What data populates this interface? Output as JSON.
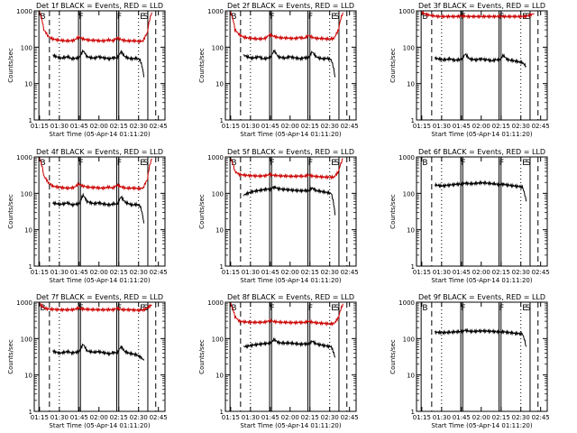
{
  "chart_data": [
    {
      "type": "line",
      "title": "Det 1f BLACK = Events, RED = LLD",
      "xlabel": "Start Time (05-Apr-14 01:11:20)",
      "ylabel": "Counts/sec",
      "xticks": [
        "01:15",
        "01:30",
        "01:45",
        "02:00",
        "02:15",
        "02:30",
        "02:45"
      ],
      "yticks": [
        "1",
        "10",
        "100",
        "1000"
      ],
      "yscale": "log",
      "ylim": [
        1,
        1000
      ],
      "series": [
        {
          "name": "BLACK = Events",
          "color": "#000000",
          "x_start": "01:25",
          "x_end": "02:34",
          "values": [
            60,
            55,
            50,
            52,
            55,
            48,
            50,
            52,
            80,
            55,
            52,
            50,
            55,
            52,
            50,
            48,
            52,
            50,
            75,
            55,
            50,
            48,
            50,
            45,
            15
          ]
        },
        {
          "name": "RED = LLD",
          "color": "#cc0000",
          "x_start": "01:15",
          "x_end": "02:40",
          "values": [
            900,
            300,
            200,
            170,
            160,
            155,
            150,
            150,
            155,
            190,
            170,
            160,
            155,
            155,
            150,
            150,
            160,
            150,
            180,
            160,
            150,
            150,
            150,
            145,
            150,
            250,
            900
          ]
        }
      ],
      "markers": [
        "B",
        "F",
        "F",
        "E",
        "S"
      ]
    },
    {
      "type": "line",
      "title": "Det 2f BLACK = Events, RED = LLD",
      "xlabel": "Start Time (05-Apr-14 01:11:20)",
      "ylabel": "Counts/sec",
      "xticks": [
        "01:15",
        "01:30",
        "01:45",
        "02:00",
        "02:15",
        "02:30",
        "02:45"
      ],
      "yticks": [
        "1",
        "10",
        "100",
        "1000"
      ],
      "yscale": "log",
      "ylim": [
        1,
        1000
      ],
      "series": [
        {
          "name": "BLACK = Events",
          "color": "#000000",
          "x_start": "01:25",
          "x_end": "02:34",
          "values": [
            60,
            55,
            50,
            52,
            55,
            48,
            50,
            52,
            80,
            55,
            52,
            50,
            55,
            52,
            50,
            48,
            52,
            50,
            75,
            55,
            50,
            48,
            50,
            45,
            15
          ]
        },
        {
          "name": "RED = LLD",
          "color": "#cc0000",
          "x_start": "01:15",
          "x_end": "02:40",
          "values": [
            900,
            300,
            220,
            190,
            180,
            175,
            170,
            170,
            175,
            220,
            200,
            185,
            180,
            180,
            175,
            175,
            185,
            175,
            210,
            185,
            175,
            175,
            170,
            170,
            175,
            300,
            900
          ]
        }
      ],
      "markers": [
        "B",
        "F",
        "F",
        "E",
        "S"
      ]
    },
    {
      "type": "line",
      "title": "Det 3f BLACK = Events, RED = LLD",
      "xlabel": "Start Time (05-Apr-14 01:11:20)",
      "ylabel": "Counts/sec",
      "xticks": [
        "01:15",
        "01:30",
        "01:45",
        "02:00",
        "02:15",
        "02:30",
        "02:45"
      ],
      "yticks": [
        "1",
        "10",
        "100",
        "1000"
      ],
      "yscale": "log",
      "ylim": [
        1,
        1000
      ],
      "series": [
        {
          "name": "BLACK = Events",
          "color": "#000000",
          "x_start": "01:25",
          "x_end": "02:34",
          "values": [
            50,
            48,
            45,
            46,
            48,
            44,
            45,
            46,
            65,
            48,
            46,
            45,
            48,
            46,
            45,
            42,
            46,
            44,
            60,
            46,
            44,
            42,
            40,
            38,
            30
          ]
        },
        {
          "name": "RED = LLD",
          "color": "#cc0000",
          "x_start": "01:15",
          "x_end": "02:40",
          "values": [
            900,
            800,
            750,
            720,
            700,
            700,
            700,
            700,
            700,
            720,
            710,
            700,
            700,
            700,
            700,
            700,
            700,
            700,
            710,
            700,
            700,
            700,
            700,
            700,
            700,
            750,
            850
          ]
        }
      ],
      "markers": [
        "B",
        "F",
        "F",
        "E",
        "S"
      ]
    },
    {
      "type": "line",
      "title": "Det 4f BLACK = Events, RED = LLD",
      "xlabel": "Start Time (05-Apr-14 01:11:20)",
      "ylabel": "Counts/sec",
      "xticks": [
        "01:15",
        "01:30",
        "01:45",
        "02:00",
        "02:15",
        "02:30",
        "02:45"
      ],
      "yticks": [
        "1",
        "10",
        "100",
        "1000"
      ],
      "yscale": "log",
      "ylim": [
        1,
        1000
      ],
      "series": [
        {
          "name": "BLACK = Events",
          "color": "#000000",
          "x_start": "01:25",
          "x_end": "02:34",
          "values": [
            55,
            52,
            50,
            52,
            55,
            48,
            50,
            52,
            90,
            60,
            55,
            52,
            55,
            52,
            50,
            48,
            52,
            50,
            80,
            58,
            52,
            48,
            50,
            45,
            15
          ]
        },
        {
          "name": "RED = LLD",
          "color": "#cc0000",
          "x_start": "01:15",
          "x_end": "02:40",
          "values": [
            900,
            300,
            200,
            160,
            150,
            145,
            140,
            140,
            145,
            180,
            160,
            150,
            145,
            145,
            140,
            140,
            150,
            140,
            170,
            150,
            140,
            140,
            140,
            135,
            140,
            240,
            900
          ]
        }
      ],
      "markers": [
        "B",
        "F",
        "F",
        "E",
        "S"
      ]
    },
    {
      "type": "line",
      "title": "Det 5f BLACK = Events, RED = LLD",
      "xlabel": "Start Time (05-Apr-14 01:11:20)",
      "ylabel": "Counts/sec",
      "xticks": [
        "01:15",
        "01:30",
        "01:45",
        "02:00",
        "02:15",
        "02:30",
        "02:45"
      ],
      "yticks": [
        "1",
        "10",
        "100",
        "1000"
      ],
      "yscale": "log",
      "ylim": [
        1,
        1000
      ],
      "series": [
        {
          "name": "BLACK = Events",
          "color": "#000000",
          "x_start": "01:25",
          "x_end": "02:34",
          "values": [
            90,
            100,
            110,
            115,
            120,
            125,
            130,
            130,
            150,
            135,
            130,
            128,
            125,
            122,
            120,
            118,
            120,
            118,
            140,
            120,
            115,
            110,
            105,
            100,
            25
          ]
        },
        {
          "name": "RED = LLD",
          "color": "#cc0000",
          "x_start": "01:15",
          "x_end": "02:40",
          "values": [
            900,
            400,
            330,
            320,
            310,
            305,
            300,
            300,
            305,
            330,
            315,
            305,
            300,
            300,
            295,
            295,
            300,
            295,
            320,
            300,
            290,
            285,
            280,
            280,
            280,
            400,
            900
          ]
        }
      ],
      "markers": [
        "B",
        "F",
        "F",
        "E",
        "S"
      ]
    },
    {
      "type": "line",
      "title": "Det 6f BLACK = Events, RED = LLD",
      "xlabel": "Start Time (05-Apr-14 01:11:20)",
      "ylabel": "Counts/sec",
      "xticks": [
        "01:15",
        "01:30",
        "01:45",
        "02:00",
        "02:15",
        "02:30",
        "02:45"
      ],
      "yticks": [
        "1",
        "10",
        "100",
        "1000"
      ],
      "yscale": "log",
      "ylim": [
        1,
        1000
      ],
      "series": [
        {
          "name": "BLACK = Events",
          "color": "#000000",
          "x_start": "01:25",
          "x_end": "02:34",
          "values": [
            170,
            165,
            160,
            165,
            170,
            175,
            180,
            180,
            190,
            185,
            185,
            190,
            195,
            195,
            190,
            185,
            180,
            175,
            180,
            170,
            165,
            160,
            155,
            150,
            60
          ]
        }
      ],
      "markers": [
        "B",
        "F",
        "F",
        "E",
        "S"
      ]
    },
    {
      "type": "line",
      "title": "Det 7f BLACK = Events, RED = LLD",
      "xlabel": "Start Time (05-Apr-14 01:11:20)",
      "ylabel": "Counts/sec",
      "xticks": [
        "01:15",
        "01:30",
        "01:45",
        "02:00",
        "02:15",
        "02:30",
        "02:45"
      ],
      "yticks": [
        "1",
        "10",
        "100",
        "1000"
      ],
      "yscale": "log",
      "ylim": [
        1,
        1000
      ],
      "series": [
        {
          "name": "BLACK = Events",
          "color": "#000000",
          "x_start": "01:25",
          "x_end": "02:34",
          "values": [
            45,
            42,
            40,
            42,
            44,
            40,
            42,
            44,
            70,
            46,
            44,
            42,
            44,
            42,
            40,
            38,
            42,
            40,
            60,
            44,
            40,
            38,
            36,
            32,
            25
          ]
        },
        {
          "name": "RED = LLD",
          "color": "#cc0000",
          "x_start": "01:15",
          "x_end": "02:40",
          "values": [
            900,
            700,
            650,
            640,
            630,
            620,
            620,
            620,
            630,
            700,
            650,
            640,
            630,
            630,
            620,
            620,
            630,
            620,
            680,
            630,
            620,
            620,
            610,
            600,
            610,
            700,
            850
          ]
        }
      ],
      "markers": [
        "B",
        "F",
        "F",
        "E",
        "S"
      ]
    },
    {
      "type": "line",
      "title": "Det 8f BLACK = Events, RED = LLD",
      "xlabel": "Start Time (05-Apr-14 01:11:20)",
      "ylabel": "Counts/sec",
      "xticks": [
        "01:15",
        "01:30",
        "01:45",
        "02:00",
        "02:15",
        "02:30",
        "02:45"
      ],
      "yticks": [
        "1",
        "10",
        "100",
        "1000"
      ],
      "yscale": "log",
      "ylim": [
        1,
        1000
      ],
      "series": [
        {
          "name": "BLACK = Events",
          "color": "#000000",
          "x_start": "01:25",
          "x_end": "02:34",
          "values": [
            60,
            62,
            65,
            68,
            70,
            72,
            74,
            75,
            95,
            78,
            76,
            75,
            76,
            74,
            72,
            70,
            72,
            70,
            85,
            72,
            68,
            65,
            62,
            60,
            30
          ]
        },
        {
          "name": "RED = LLD",
          "color": "#cc0000",
          "x_start": "01:15",
          "x_end": "02:40",
          "values": [
            900,
            400,
            300,
            290,
            285,
            280,
            280,
            280,
            285,
            310,
            295,
            285,
            280,
            280,
            275,
            275,
            280,
            275,
            300,
            280,
            270,
            265,
            260,
            255,
            260,
            380,
            900
          ]
        }
      ],
      "markers": [
        "B",
        "F",
        "F",
        "E",
        "S"
      ]
    },
    {
      "type": "line",
      "title": "Det 9f BLACK = Events, RED = LLD",
      "xlabel": "Start Time (05-Apr-14 01:11:20)",
      "ylabel": "Counts/sec",
      "xticks": [
        "01:15",
        "01:30",
        "01:45",
        "02:00",
        "02:15",
        "02:30",
        "02:45"
      ],
      "yticks": [
        "1",
        "10",
        "100",
        "1000"
      ],
      "yscale": "log",
      "ylim": [
        1,
        1000
      ],
      "series": [
        {
          "name": "BLACK = Events",
          "color": "#000000",
          "x_start": "01:25",
          "x_end": "02:34",
          "values": [
            150,
            148,
            145,
            148,
            150,
            152,
            155,
            155,
            170,
            160,
            158,
            160,
            162,
            162,
            160,
            158,
            155,
            150,
            155,
            148,
            145,
            140,
            138,
            135,
            60
          ]
        }
      ],
      "markers": [
        "B",
        "F",
        "F",
        "E",
        "S"
      ]
    }
  ]
}
